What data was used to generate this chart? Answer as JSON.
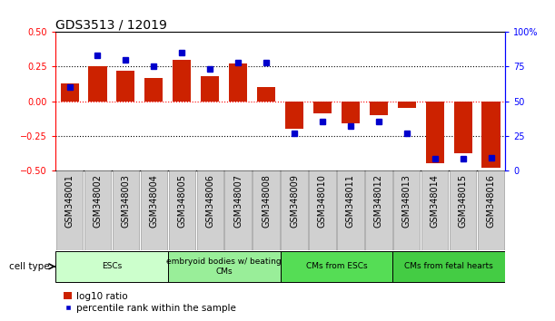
{
  "title": "GDS3513 / 12019",
  "samples": [
    "GSM348001",
    "GSM348002",
    "GSM348003",
    "GSM348004",
    "GSM348005",
    "GSM348006",
    "GSM348007",
    "GSM348008",
    "GSM348009",
    "GSM348010",
    "GSM348011",
    "GSM348012",
    "GSM348013",
    "GSM348014",
    "GSM348015",
    "GSM348016"
  ],
  "log10_ratio": [
    0.13,
    0.25,
    0.22,
    0.17,
    0.3,
    0.18,
    0.27,
    0.1,
    -0.2,
    -0.09,
    -0.16,
    -0.1,
    -0.05,
    -0.45,
    -0.38,
    -0.48
  ],
  "percentile_rank": [
    60,
    83,
    80,
    75,
    85,
    73,
    78,
    78,
    27,
    35,
    32,
    35,
    27,
    8,
    8,
    9
  ],
  "bar_color": "#cc2200",
  "marker_color": "#0000cc",
  "ylim_left": [
    -0.5,
    0.5
  ],
  "ylim_right": [
    0,
    100
  ],
  "yticks_left": [
    -0.5,
    -0.25,
    0,
    0.25,
    0.5
  ],
  "yticks_right": [
    0,
    25,
    50,
    75,
    100
  ],
  "cell_groups": [
    {
      "label": "ESCs",
      "start": 0,
      "end": 4,
      "color": "#ccffcc"
    },
    {
      "label": "embryoid bodies w/ beating\nCMs",
      "start": 4,
      "end": 8,
      "color": "#99ee99"
    },
    {
      "label": "CMs from ESCs",
      "start": 8,
      "end": 12,
      "color": "#55dd55"
    },
    {
      "label": "CMs from fetal hearts",
      "start": 12,
      "end": 16,
      "color": "#44cc44"
    }
  ],
  "cell_type_label": "cell type",
  "legend_bar_label": "log10 ratio",
  "legend_marker_label": "percentile rank within the sample",
  "title_fontsize": 10,
  "tick_fontsize": 7,
  "bar_width": 0.65
}
